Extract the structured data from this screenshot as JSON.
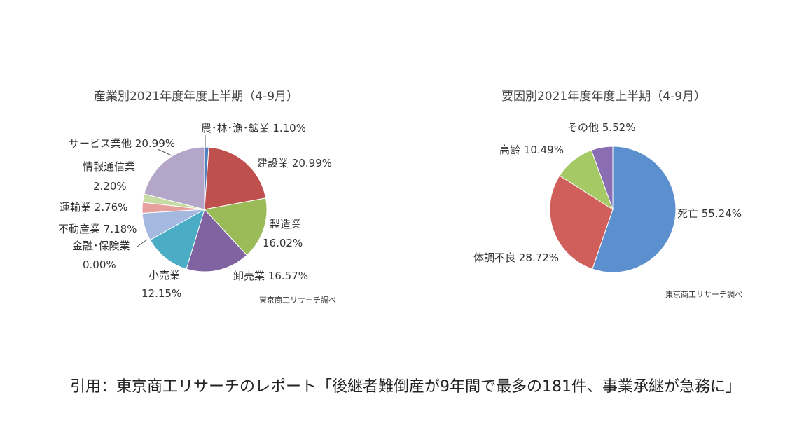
{
  "chart_data": [
    {
      "type": "pie",
      "title": "産業別2021年度年度上半期（4-9月）",
      "source": "東京商工リサーチ調べ",
      "slices": [
        {
          "label": "農･林･漁･鉱業",
          "value_label": "1.10%",
          "value": 1.1,
          "color": "#4f81bd"
        },
        {
          "label": "建設業",
          "value_label": "20.99%",
          "value": 20.99,
          "color": "#c0504d"
        },
        {
          "label": "製造業",
          "value_label": "16.02%",
          "value": 16.02,
          "color": "#9bbb59"
        },
        {
          "label": "卸売業",
          "value_label": "16.57%",
          "value": 16.57,
          "color": "#8064a2"
        },
        {
          "label": "小売業",
          "value_label": "12.15%",
          "value": 12.15,
          "color": "#4bacc6"
        },
        {
          "label": "金融･保険業",
          "value_label": "0.00%",
          "value": 0.0,
          "color": "#f79646"
        },
        {
          "label": "不動産業",
          "value_label": "7.18%",
          "value": 7.18,
          "color": "#a5b9e0"
        },
        {
          "label": "運輸業",
          "value_label": "2.76%",
          "value": 2.76,
          "color": "#e6a09e"
        },
        {
          "label": "情報通信業",
          "value_label": "2.20%",
          "value": 2.2,
          "color": "#c7dca3"
        },
        {
          "label": "サービス業他",
          "value_label": "20.99%",
          "value": 20.99,
          "color": "#b3a6c8"
        }
      ]
    },
    {
      "type": "pie",
      "title": "要因別2021年度年度上半期（4-9月）",
      "source": "東京商工リサーチ調べ",
      "slices": [
        {
          "label": "死亡",
          "value_label": "55.24%",
          "value": 55.24,
          "color": "#5b8fce"
        },
        {
          "label": "体調不良",
          "value_label": "28.72%",
          "value": 28.72,
          "color": "#d05f5c"
        },
        {
          "label": "高齢",
          "value_label": "10.49%",
          "value": 10.49,
          "color": "#a4c965"
        },
        {
          "label": "その他",
          "value_label": "5.52%",
          "value": 5.52,
          "color": "#8a6db3"
        }
      ]
    }
  ],
  "citation": "引用：東京商工リサーチのレポート「後継者難倒産が9年間で最多の181件、事業承継が急務に」"
}
